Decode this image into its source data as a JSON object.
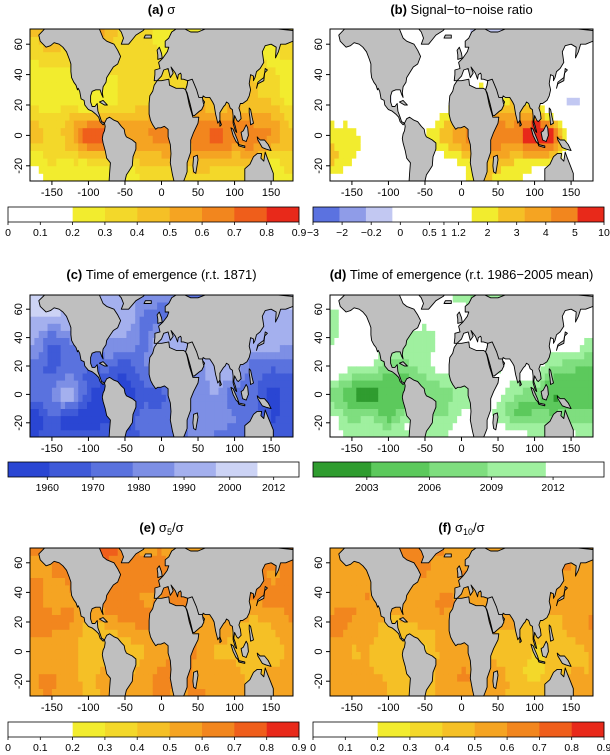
{
  "figure": {
    "x_ticks": [
      -150,
      -100,
      -50,
      0,
      50,
      100,
      150
    ],
    "y_ticks": [
      -20,
      0,
      20,
      40,
      60
    ],
    "lon_range": [
      -180,
      180
    ],
    "lat_range": [
      -30,
      70
    ],
    "land_color": "#bfbfbf",
    "ocean_missing_color": "#ffffff"
  },
  "chart_data": [
    {
      "type": "heatmap",
      "id": "a",
      "label": "(a)",
      "title": "σ",
      "title_sub": "",
      "colorbar": {
        "ticks": [
          "0",
          "0.1",
          "0.2",
          "0.3",
          "0.4",
          "0.5",
          "0.6",
          "0.7",
          "0.8",
          "0.9"
        ],
        "tick_fracs": [
          0,
          0.111,
          0.222,
          0.333,
          0.444,
          0.556,
          0.667,
          0.778,
          0.889,
          1
        ],
        "colors": [
          "#ffffff",
          "#ffffff",
          "#f2ec2e",
          "#f3d82a",
          "#f5c026",
          "#f5a422",
          "#f2861e",
          "#ef5e1b",
          "#e8291a"
        ],
        "range": [
          0,
          0.9
        ]
      },
      "field_range": [
        0,
        0.9
      ],
      "field_params": {
        "base": 0.28,
        "amp": 0.18,
        "tropics": 0.24,
        "north": 0.06,
        "wfreq": 3,
        "noise": 0.08,
        "mask": 0.14,
        "blob_lon": -95,
        "blob_lat": 0,
        "blob_gain": 0.38
      }
    },
    {
      "type": "heatmap",
      "id": "b",
      "label": "(b)",
      "title": "Signal−to−noise ratio",
      "title_sub": "",
      "colorbar": {
        "ticks": [
          "−3",
          "−2",
          "−0.2",
          "0",
          "0.5",
          "1",
          "1.2",
          "2",
          "3",
          "4",
          "5",
          "10"
        ],
        "tick_fracs": [
          0,
          0.1,
          0.2,
          0.3,
          0.4,
          0.45,
          0.5,
          0.6,
          0.7,
          0.8,
          0.9,
          1
        ],
        "colors": [
          "#5b72e0",
          "#8f9ce8",
          "#c2c8f2",
          "#ffffff",
          "#ffffff",
          "#ffffff",
          "#f2ec2e",
          "#f5c026",
          "#f5a422",
          "#f2861e",
          "#e8291a"
        ],
        "range": [
          -3,
          10
        ]
      },
      "field_range": [
        -3,
        10
      ],
      "field_params": {
        "base": 2.6,
        "amp": 2.4,
        "tropics": 2.8,
        "north": -0.8,
        "wfreq": 4,
        "noise": 1.3,
        "mask": 0.8,
        "blob_lon": 110,
        "blob_lat": 0,
        "blob_gain": 4.5
      }
    },
    {
      "type": "heatmap",
      "id": "c",
      "label": "(c)",
      "title": "Time of emergence (r.t. 1871)",
      "title_sub": "",
      "colorbar": {
        "ticks": [
          "1960",
          "1970",
          "1980",
          "1990",
          "2000",
          "2012"
        ],
        "tick_fracs": [
          0.135,
          0.292,
          0.449,
          0.605,
          0.762,
          0.913
        ],
        "colors": [
          "#2a46d3",
          "#3f5ad8",
          "#5a72de",
          "#7d8fe5",
          "#a4b0ee",
          "#ccd3f5",
          "#ffffff"
        ],
        "range": [
          1951,
          2015
        ]
      },
      "field_range": [
        1951,
        2015
      ],
      "field_params": {
        "base": 1975,
        "amp": 18,
        "tropics": -8,
        "north": 14,
        "wfreq": 3,
        "noise": 10,
        "mask": 0,
        "blob_lon": -130,
        "blob_lat": 0,
        "blob_gain": 38
      }
    },
    {
      "type": "heatmap",
      "id": "d",
      "label": "(d)",
      "title": "Time of emergence (r.t. 1986−2005 mean)",
      "title_sub": "",
      "colorbar": {
        "ticks": [
          "2003",
          "2006",
          "2009",
          "2012"
        ],
        "tick_fracs": [
          0.185,
          0.4,
          0.613,
          0.825
        ],
        "colors": [
          "#2f9c2f",
          "#5cc95c",
          "#7fde7f",
          "#9ff09f",
          "#ffffff"
        ],
        "range": [
          2000.4,
          2014.5
        ]
      },
      "field_range": [
        2000.4,
        2014.5
      ],
      "field_params": {
        "base": 2013.5,
        "amp": 4,
        "tropics": -6,
        "north": 0,
        "wfreq": 4,
        "noise": 3,
        "mask": 0,
        "blob_lon": 80,
        "blob_lat": -10,
        "blob_gain": -5
      }
    },
    {
      "type": "heatmap",
      "id": "e",
      "label": "(e)",
      "title": "σ",
      "title_sub": "5",
      "title_suffix": "/σ",
      "colorbar": {
        "ticks": [
          "0",
          "0.1",
          "0.2",
          "0.3",
          "0.4",
          "0.5",
          "0.6",
          "0.7",
          "0.8",
          "0.9"
        ],
        "tick_fracs": [
          0,
          0.111,
          0.222,
          0.333,
          0.444,
          0.556,
          0.667,
          0.778,
          0.889,
          1
        ],
        "colors": [
          "#ffffff",
          "#ffffff",
          "#f2ec2e",
          "#f3d82a",
          "#f5c026",
          "#f5a422",
          "#f2861e",
          "#ef5e1b",
          "#e8291a"
        ],
        "range": [
          0,
          0.9
        ]
      },
      "field_range": [
        0,
        0.9
      ],
      "field_params": {
        "base": 0.58,
        "amp": 0.08,
        "tropics": -0.06,
        "north": 0.05,
        "wfreq": 5,
        "noise": 0.06,
        "mask": 0,
        "blob_lon": -60,
        "blob_lat": 30,
        "blob_gain": 0.1
      }
    },
    {
      "type": "heatmap",
      "id": "f",
      "label": "(f)",
      "title": "σ",
      "title_sub": "10",
      "title_suffix": "/σ",
      "colorbar": {
        "ticks": [
          "0",
          "0.1",
          "0.2",
          "0.3",
          "0.4",
          "0.5",
          "0.6",
          "0.7",
          "0.8",
          "0.9"
        ],
        "tick_fracs": [
          0,
          0.111,
          0.222,
          0.333,
          0.444,
          0.556,
          0.667,
          0.778,
          0.889,
          1
        ],
        "colors": [
          "#ffffff",
          "#ffffff",
          "#f2ec2e",
          "#f3d82a",
          "#f5c026",
          "#f5a422",
          "#f2861e",
          "#ef5e1b",
          "#e8291a"
        ],
        "range": [
          0,
          0.9
        ]
      },
      "field_range": [
        0,
        0.9
      ],
      "field_params": {
        "base": 0.54,
        "amp": 0.08,
        "tropics": -0.07,
        "north": 0.06,
        "wfreq": 6,
        "noise": 0.06,
        "mask": 0,
        "blob_lon": -50,
        "blob_lat": 25,
        "blob_gain": 0.08
      }
    }
  ]
}
